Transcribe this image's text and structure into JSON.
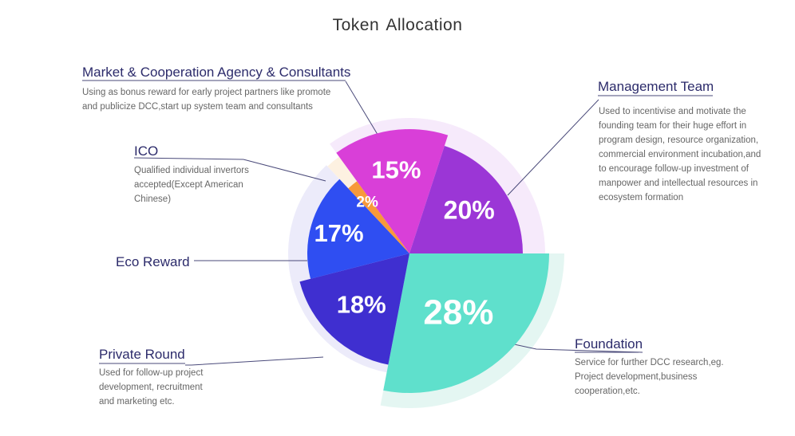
{
  "title": "Token  Allocation",
  "chart_data": {
    "type": "pie",
    "title": "Token  Allocation",
    "slices": [
      {
        "label": "Foundation",
        "value": 28,
        "display": "28%",
        "color": "#5fe0cc",
        "description": [
          "Service for further DCC research,eg.",
          "Project development,business",
          "cooperation,etc."
        ]
      },
      {
        "label": "Private Round",
        "value": 18,
        "display": "18%",
        "color": "#3f2fd0",
        "description": [
          "Used for follow-up project",
          "development, recruitment",
          "and marketing etc."
        ]
      },
      {
        "label": "Eco Reward",
        "value": 17,
        "display": "17%",
        "color": "#2f4ef2",
        "description": []
      },
      {
        "label": "ICO",
        "value": 2,
        "display": "2%",
        "color": "#f7993a",
        "description": [
          "Qualified individual invertors",
          "accepted(Except American",
          "Chinese)"
        ]
      },
      {
        "label": "Market & Cooperation Agency & Consultants",
        "value": 15,
        "display": "15%",
        "color": "#d93fd8",
        "description": [
          "Using as bonus reward for early project partners like promote",
          "and publicize DCC,start up system team and consultants"
        ]
      },
      {
        "label": "Management Team",
        "value": 20,
        "display": "20%",
        "color": "#9b36d6",
        "description": [
          "Used to incentivise and motivate the",
          "founding team for their huge effort in",
          "program design, resource organization,",
          "commercial environment incubation,and",
          "to encourage follow-up investment of",
          "manpower and intellectual resources in",
          "ecosystem formation"
        ]
      }
    ]
  }
}
